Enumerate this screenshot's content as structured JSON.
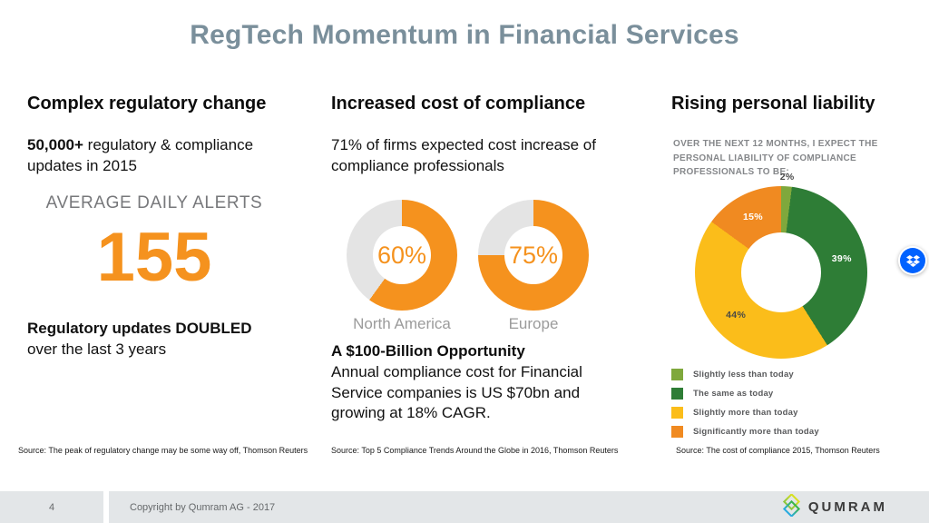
{
  "title": "RegTech Momentum in Financial Services",
  "columns": [
    {
      "heading": "Complex regulatory change",
      "stat_bold": "50,000+",
      "stat_rest": "regulatory & compliance updates in 2015",
      "alerts_label": "AVERAGE DAILY ALERTS",
      "alerts_value": "155",
      "claim_bold": "Regulatory updates DOUBLED",
      "claim_rest": "over the last 3 years",
      "source": "Source: The peak of regulatory change may be some way off, Thomson Reuters"
    },
    {
      "heading": "Increased cost of compliance",
      "stat": "71% of firms expected cost increase of compliance professionals",
      "opportunity_heading": "A $100-Billion Opportunity",
      "opportunity_body": "Annual compliance cost for Financial Service companies is US $70bn and growing at 18% CAGR.",
      "source": "Source: Top 5 Compliance Trends Around the Globe in 2016, Thomson Reuters"
    },
    {
      "heading": "Rising personal liability",
      "caption": "OVER THE NEXT 12 MONTHS, I EXPECT THE PERSONAL LIABILITY OF COMPLIANCE PROFESSIONALS TO BE:",
      "source": "Source: The cost of compliance 2015, Thomson Reuters"
    }
  ],
  "chart_data": [
    {
      "type": "pie",
      "label": "North America",
      "center_label": "60%",
      "values": [
        60,
        40
      ],
      "colors": [
        "#F5921E",
        "#E4E4E4"
      ]
    },
    {
      "type": "pie",
      "label": "Europe",
      "center_label": "75%",
      "values": [
        75,
        25
      ],
      "colors": [
        "#F5921E",
        "#E4E4E4"
      ]
    },
    {
      "type": "pie",
      "title": "OVER THE NEXT 12 MONTHS, I EXPECT THE PERSONAL LIABILITY OF COMPLIANCE PROFESSIONALS TO BE:",
      "legend_position": "bottom-left",
      "segments": [
        {
          "label": "Slightly less than today",
          "value": 2,
          "color": "#7FA83C",
          "pct_label": "2%",
          "label_color": "#4A4A4A"
        },
        {
          "label": "The same as today",
          "value": 39,
          "color": "#2E7D36",
          "pct_label": "39%",
          "label_color": "#FFFFFF"
        },
        {
          "label": "Slightly more than today",
          "value": 44,
          "color": "#FBBD1A",
          "pct_label": "44%",
          "label_color": "#4A4A45"
        },
        {
          "label": "Significantly more than today",
          "value": 15,
          "color": "#F08A21",
          "pct_label": "15%",
          "label_color": "#FFFFFF"
        }
      ]
    }
  ],
  "footer": {
    "page_number": "4",
    "copyright": "Copyright by Qumram AG - 2017",
    "brand": "QUMRAM"
  },
  "icons": {
    "overlay_badge": "dropbox-icon",
    "brand_mark": "qumram-logo-icon"
  },
  "colors": {
    "title": "#7A8F9B",
    "accent_orange": "#F5921E",
    "donut_remainder_gray": "#E4E4E4",
    "footer_bg": "#E3E6E8",
    "dropbox_blue": "#0062FF"
  }
}
